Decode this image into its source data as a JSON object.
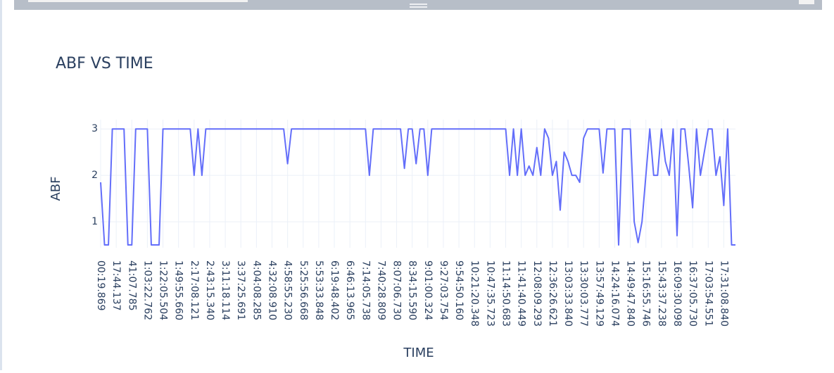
{
  "chart_data": {
    "type": "line",
    "title": "ABF VS TIME",
    "x_label": "TIME",
    "y_label": "ABF",
    "categories": [
      "00:19.869",
      null,
      null,
      null,
      "17:44.137",
      null,
      null,
      null,
      "41:07.785",
      null,
      null,
      null,
      "1:03:22.762",
      null,
      null,
      null,
      "1:22:05.504",
      null,
      null,
      null,
      "1:49:55.660",
      null,
      null,
      null,
      "2:17:08.121",
      null,
      null,
      null,
      "2:43:15.340",
      null,
      null,
      null,
      "3:11:18.114",
      null,
      null,
      null,
      "3:37:25.691",
      null,
      null,
      null,
      "4:04:08.285",
      null,
      null,
      null,
      "4:32:08.910",
      null,
      null,
      null,
      "4:58:55.230",
      null,
      null,
      null,
      "5:25:56.668",
      null,
      null,
      null,
      "5:53:33.848",
      null,
      null,
      null,
      "6:19:48.402",
      null,
      null,
      null,
      "6:46:13.965",
      null,
      null,
      null,
      "7:14:05.738",
      null,
      null,
      null,
      "7:40:28.809",
      null,
      null,
      null,
      "8:07:06.730",
      null,
      null,
      null,
      "8:34:15.590",
      null,
      null,
      null,
      "9:01:00.324",
      null,
      null,
      null,
      "9:27:03.754",
      null,
      null,
      null,
      "9:54:50.160",
      null,
      null,
      null,
      "10:21:20.348",
      null,
      null,
      null,
      "10:47:35.723",
      null,
      null,
      null,
      "11:14:50.683",
      null,
      null,
      null,
      "11:41:40.449",
      null,
      null,
      null,
      "12:08:09.293",
      null,
      null,
      null,
      "12:36:26.621",
      null,
      null,
      null,
      "13:03:33.840",
      null,
      null,
      null,
      "13:30:03.777",
      null,
      null,
      null,
      "13:57:49.129",
      null,
      null,
      null,
      "14:24:16.074",
      null,
      null,
      null,
      "14:49:47.840",
      null,
      null,
      null,
      "15:16:55.746",
      null,
      null,
      null,
      "15:43:37.238",
      null,
      null,
      null,
      "16:09:30.098",
      null,
      null,
      null,
      "16:37:05.730",
      null,
      null,
      null,
      "17:03:54.551",
      null,
      null,
      null,
      "17:31:08.840",
      null,
      null,
      null
    ],
    "values": [
      1.85,
      0.5,
      0.5,
      3,
      3,
      3,
      3,
      0.5,
      0.5,
      3,
      3,
      3,
      3,
      0.5,
      0.5,
      0.5,
      3,
      3,
      3,
      3,
      3,
      3,
      3,
      3,
      2,
      3,
      2,
      3,
      3,
      3,
      3,
      3,
      3,
      3,
      3,
      3,
      3,
      3,
      3,
      3,
      3,
      3,
      3,
      3,
      3,
      3,
      3,
      3,
      2.25,
      3,
      3,
      3,
      3,
      3,
      3,
      3,
      3,
      3,
      3,
      3,
      3,
      3,
      3,
      3,
      3,
      3,
      3,
      3,
      3,
      2,
      3,
      3,
      3,
      3,
      3,
      3,
      3,
      3,
      2.15,
      3,
      3,
      2.25,
      3,
      3,
      2,
      3,
      3,
      3,
      3,
      3,
      3,
      3,
      3,
      3,
      3,
      3,
      3,
      3,
      3,
      3,
      3,
      3,
      3,
      3,
      3,
      2,
      3,
      2,
      3,
      2,
      2.2,
      2,
      2.6,
      2,
      3,
      2.8,
      2,
      2.3,
      1.25,
      2.5,
      2.3,
      2,
      2,
      1.85,
      2.8,
      3,
      3,
      3,
      3,
      2.05,
      3,
      3,
      3,
      0.5,
      3,
      3,
      3,
      1,
      0.55,
      1,
      2,
      3,
      2,
      2,
      3,
      2.3,
      2,
      3,
      0.7,
      3,
      3,
      2.2,
      1.3,
      3,
      2,
      2.5,
      3,
      3,
      2,
      2.4,
      1.35,
      3,
      0.5,
      0.5
    ],
    "color": "#636efa",
    "ylim": [
      0.44,
      3.2
    ],
    "yticks": [
      1,
      2,
      3
    ],
    "grid": true
  }
}
